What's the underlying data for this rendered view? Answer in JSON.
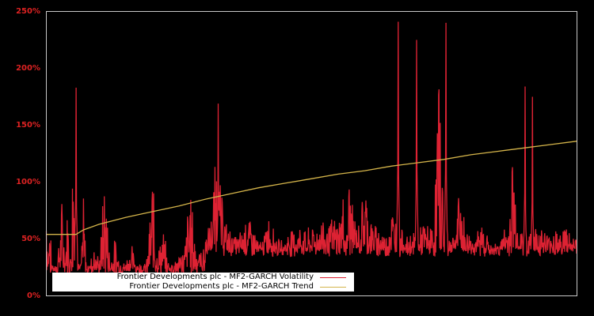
{
  "chart_data": {
    "type": "line",
    "title": "",
    "xlabel": "",
    "ylabel": "",
    "ylim": [
      0,
      250
    ],
    "y_ticks": [
      "0%",
      "50%",
      "100%",
      "150%",
      "200%",
      "250%"
    ],
    "grid": false,
    "legend_position": "bottom-left inside plot",
    "background": "#000000",
    "axis_label_color": "#dd2222",
    "series": [
      {
        "name": "Frontier Developments plc - MF2-GARCH Volatility",
        "color": "#dd2233",
        "description": "Noisy daily volatility, mostly 25–80%, with spikes",
        "x_frac": [
          0.0,
          0.003,
          0.006,
          0.01,
          0.02,
          0.03,
          0.035,
          0.04,
          0.045,
          0.05,
          0.053,
          0.056,
          0.058,
          0.06,
          0.065,
          0.07,
          0.075,
          0.08,
          0.09,
          0.1,
          0.11,
          0.12,
          0.13,
          0.14,
          0.15,
          0.16,
          0.17,
          0.18,
          0.19,
          0.2,
          0.21,
          0.22,
          0.23,
          0.24,
          0.25,
          0.26,
          0.27,
          0.28,
          0.29,
          0.3,
          0.31,
          0.32,
          0.33,
          0.34,
          0.35,
          0.36,
          0.37,
          0.38,
          0.39,
          0.4,
          0.41,
          0.42,
          0.43,
          0.44,
          0.45,
          0.46,
          0.47,
          0.48,
          0.49,
          0.5,
          0.51,
          0.52,
          0.53,
          0.54,
          0.55,
          0.56,
          0.565,
          0.57,
          0.58,
          0.59,
          0.6,
          0.61,
          0.62,
          0.63,
          0.64,
          0.65,
          0.66,
          0.67,
          0.68,
          0.69,
          0.7,
          0.71,
          0.72,
          0.73,
          0.74,
          0.75,
          0.76,
          0.77,
          0.78,
          0.79,
          0.8,
          0.81,
          0.82,
          0.83,
          0.84,
          0.85,
          0.86,
          0.87,
          0.88,
          0.89,
          0.9,
          0.91,
          0.92,
          0.93,
          0.94,
          0.95,
          0.96,
          0.97,
          0.98,
          0.99,
          1.0
        ],
        "values": [
          130,
          40,
          75,
          30,
          25,
          90,
          35,
          85,
          30,
          150,
          183,
          60,
          45,
          30,
          25,
          88,
          30,
          25,
          45,
          28,
          115,
          30,
          50,
          25,
          30,
          45,
          28,
          25,
          30,
          112,
          35,
          60,
          28,
          30,
          35,
          40,
          100,
          55,
          40,
          50,
          65,
          135,
          90,
          60,
          55,
          50,
          60,
          70,
          60,
          45,
          50,
          75,
          55,
          45,
          50,
          58,
          60,
          60,
          55,
          60,
          60,
          70,
          60,
          68,
          65,
          90,
          45,
          110,
          70,
          60,
          110,
          70,
          60,
          60,
          50,
          80,
          70,
          60,
          50,
          55,
          50,
          65,
          60,
          60,
          200,
          60,
          50,
          60,
          100,
          55,
          55,
          50,
          65,
          55,
          40,
          45,
          55,
          60,
          140,
          60,
          55,
          50,
          60,
          65,
          55,
          55,
          60,
          55,
          65,
          50,
          55
        ],
        "spikes": [
          {
            "x_frac": 0.056,
            "value": 183
          },
          {
            "x_frac": 0.324,
            "value": 169
          },
          {
            "x_frac": 0.663,
            "value": 241
          },
          {
            "x_frac": 0.698,
            "value": 225
          },
          {
            "x_frac": 0.737,
            "value": 143
          },
          {
            "x_frac": 0.753,
            "value": 240
          },
          {
            "x_frac": 0.902,
            "value": 184
          },
          {
            "x_frac": 0.916,
            "value": 175
          }
        ]
      },
      {
        "name": "Frontier Developments plc - MF2-GARCH Trend",
        "color": "#d4b44a",
        "description": "Flat at ~54% then slowly rising to ~136%",
        "x_frac": [
          0.0,
          0.056,
          0.07,
          0.1,
          0.15,
          0.18,
          0.2,
          0.25,
          0.3,
          0.35,
          0.4,
          0.45,
          0.5,
          0.55,
          0.6,
          0.65,
          0.7,
          0.75,
          0.8,
          0.85,
          0.9,
          0.95,
          1.0
        ],
        "values": [
          54,
          54,
          58,
          63,
          69,
          72,
          74,
          79,
          85,
          90,
          95,
          99,
          103,
          107,
          110,
          114,
          117,
          120,
          124,
          127,
          130,
          133,
          136
        ]
      }
    ]
  },
  "axis": {
    "y_labels": [
      "250%",
      "200%",
      "150%",
      "100%",
      "50%",
      "0%"
    ]
  },
  "legend": {
    "items": [
      {
        "label": "Frontier Developments plc - MF2-GARCH Volatility",
        "color": "#dd2233"
      },
      {
        "label": "Frontier Developments plc - MF2-GARCH Trend",
        "color": "#d4b44a"
      }
    ]
  }
}
